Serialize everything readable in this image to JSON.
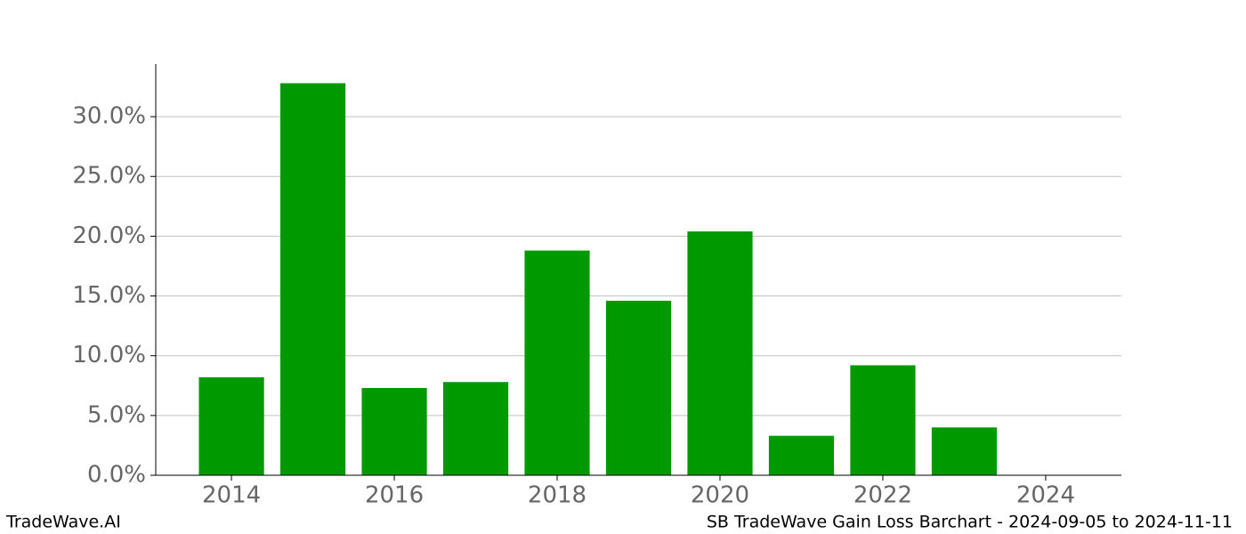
{
  "chart_data": {
    "type": "bar",
    "x": [
      2014,
      2015,
      2016,
      2017,
      2018,
      2019,
      2020,
      2021,
      2022,
      2023
    ],
    "values": [
      8.2,
      32.8,
      7.3,
      7.8,
      18.8,
      14.6,
      20.4,
      3.3,
      9.2,
      4.0
    ],
    "color": "#009900",
    "xlim": [
      2013.07,
      2024.93
    ],
    "xticks": [
      2014,
      2016,
      2018,
      2020,
      2022,
      2024
    ],
    "ylim": [
      0,
      34.4
    ],
    "yticks": [
      {
        "value": 0,
        "label": "0.0%"
      },
      {
        "value": 5,
        "label": "5.0%"
      },
      {
        "value": 10,
        "label": "10.0%"
      },
      {
        "value": 15,
        "label": "15.0%"
      },
      {
        "value": 20,
        "label": "20.0%"
      },
      {
        "value": 25,
        "label": "25.0%"
      },
      {
        "value": 30,
        "label": "30.0%"
      }
    ],
    "grid": true
  },
  "footer": {
    "left": "TradeWave.AI",
    "right": "SB TradeWave Gain Loss Barchart - 2024-09-05 to 2024-11-11"
  }
}
